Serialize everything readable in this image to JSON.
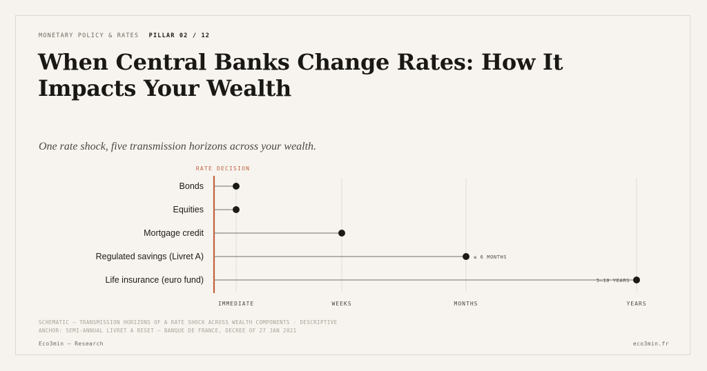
{
  "header": {
    "kicker": "MONETARY POLICY & RATES",
    "pillar": "PILLAR 02 / 12",
    "title": "When Central Banks Change Rates: How It Impacts Your Wealth",
    "subtitle": "One rate shock, five transmission horizons across your wealth."
  },
  "colors": {
    "decision_line": "#c0613f",
    "dot": "#1c1a17",
    "connector": "#8c8880",
    "grid": "#e2ddd3",
    "background": "#f7f4ef"
  },
  "chart_data": {
    "type": "scatter",
    "marker_label": "RATE DECISION",
    "x_ticks": [
      "IMMEDIATE",
      "WEEKS",
      "MONTHS",
      "YEARS"
    ],
    "categories": [
      "Bonds",
      "Equities",
      "Mortgage credit",
      "Regulated savings (Livret A)",
      "Life insurance (euro fund)"
    ],
    "values": [
      "IMMEDIATE",
      "IMMEDIATE",
      "WEEKS",
      "MONTHS",
      "YEARS"
    ],
    "annotations": [
      "",
      "",
      "",
      "≤ 6 MONTHS",
      "5–10 YEARS"
    ],
    "grid": true
  },
  "footer": {
    "note_line1": "SCHEMATIC — TRANSMISSION HORIZONS OF A RATE SHOCK ACROSS WEALTH COMPONENTS · DESCRIPTIVE",
    "note_line2": "ANCHOR: SEMI-ANNUAL LIVRET A RESET — BANQUE DE FRANCE, DECREE OF 27 JAN 2021",
    "brand": "Eco3min — Research",
    "site": "eco3min.fr"
  }
}
